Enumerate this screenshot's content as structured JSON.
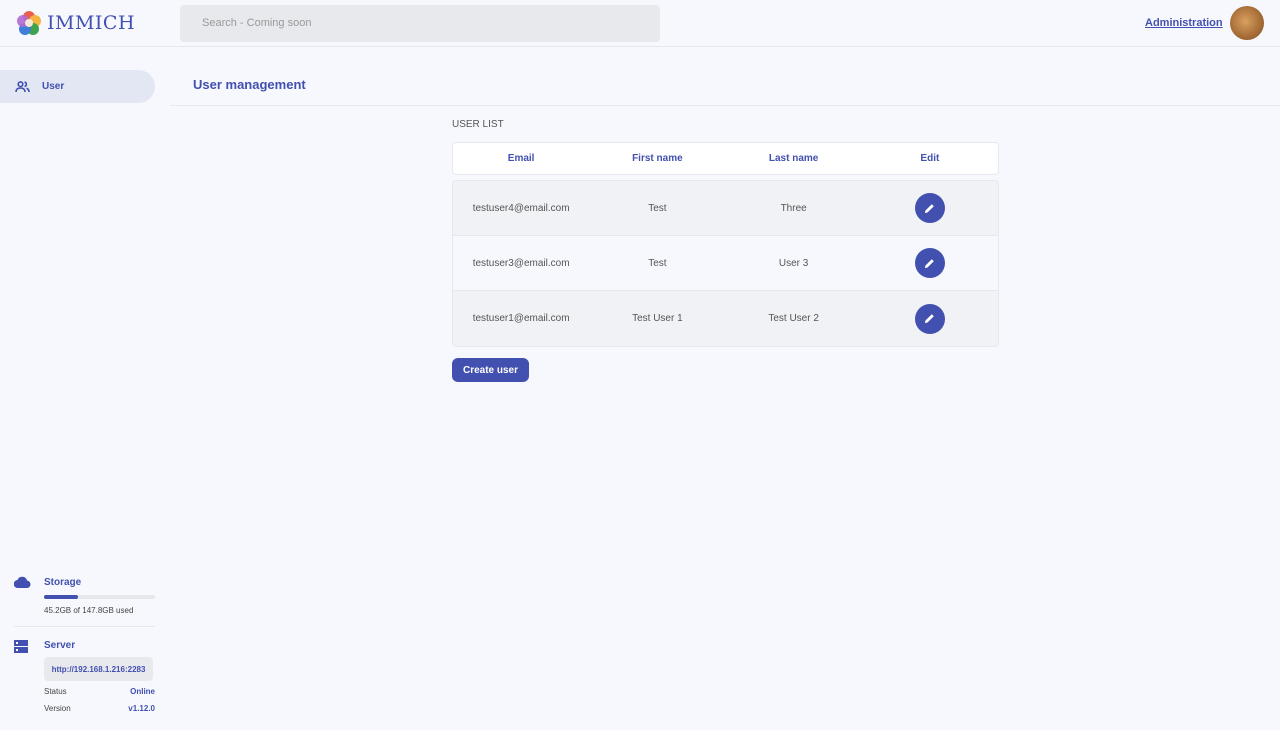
{
  "header": {
    "app_name": "IMMICH",
    "search_placeholder": "Search - Coming soon",
    "admin_link": "Administration"
  },
  "sidebar": {
    "items": [
      {
        "label": "User",
        "icon": "users-icon",
        "active": true
      }
    ],
    "storage": {
      "title": "Storage",
      "used_text": "45.2GB of 147.8GB used",
      "used_fraction": 0.306
    },
    "server": {
      "title": "Server",
      "url": "http://192.168.1.216:2283",
      "status_label": "Status",
      "status": "Online",
      "version_label": "Version",
      "version": "v1.12.0"
    }
  },
  "main": {
    "title": "User management",
    "list_label": "USER LIST",
    "columns": [
      "Email",
      "First name",
      "Last name",
      "Edit"
    ],
    "rows": [
      {
        "email": "testuser4@email.com",
        "first": "Test",
        "last": "Three"
      },
      {
        "email": "testuser3@email.com",
        "first": "Test",
        "last": "User 3"
      },
      {
        "email": "testuser1@email.com",
        "first": "Test User 1",
        "last": "Test User 2"
      }
    ],
    "create_label": "Create user"
  },
  "colors": {
    "accent": "#4250af",
    "background": "#f6f8fd"
  }
}
